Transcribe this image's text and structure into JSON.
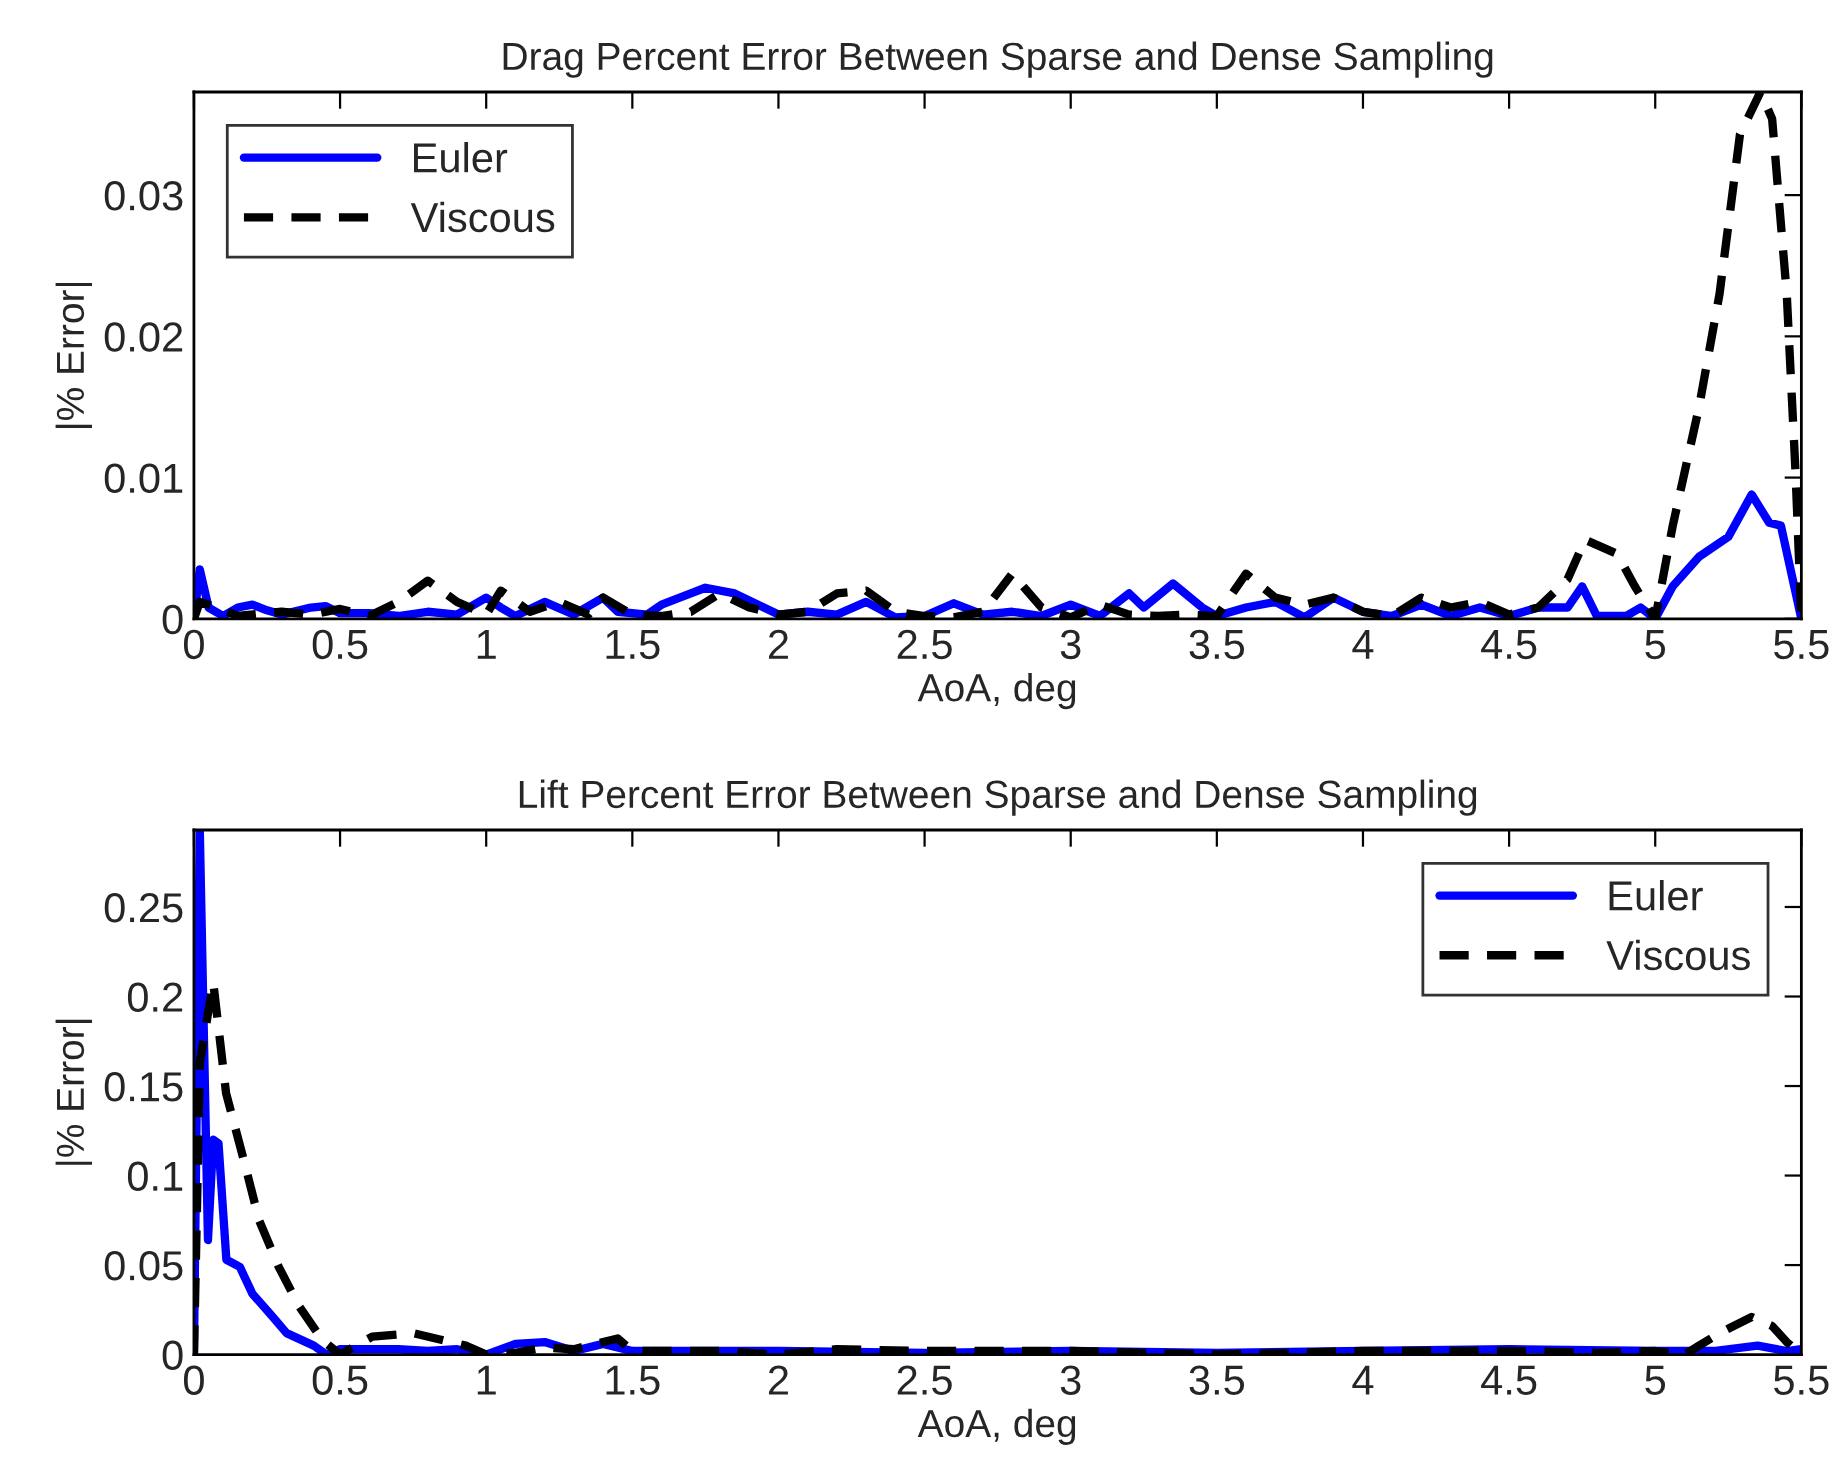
{
  "chart_data": [
    {
      "type": "line",
      "title": "Drag Percent Error Between Sparse and Dense Sampling",
      "xlabel": "AoA, deg",
      "ylabel": "|% Error|",
      "xlim": [
        0,
        5.5
      ],
      "xticks": [
        0,
        0.5,
        1,
        1.5,
        2,
        2.5,
        3,
        3.5,
        4,
        4.5,
        5,
        5.5
      ],
      "ylim": [
        0,
        0.0373
      ],
      "yticks": [
        0,
        0.01,
        0.02,
        0.03
      ],
      "grid": false,
      "legend": "top left",
      "series": [
        {
          "name": "Euler",
          "color": "#0000ff",
          "line_style": "solid",
          "x": [
            0,
            0.02,
            0.05,
            0.1,
            0.15,
            0.2,
            0.25,
            0.3,
            0.4,
            0.45,
            0.5,
            0.6,
            0.7,
            0.8,
            0.9,
            1.0,
            1.05,
            1.1,
            1.2,
            1.3,
            1.4,
            1.45,
            1.55,
            1.6,
            1.7,
            1.75,
            1.85,
            1.95,
            2.0,
            2.1,
            2.2,
            2.3,
            2.4,
            2.5,
            2.6,
            2.7,
            2.8,
            2.9,
            3.0,
            3.1,
            3.2,
            3.25,
            3.35,
            3.45,
            3.5,
            3.6,
            3.7,
            3.8,
            3.9,
            4.0,
            4.1,
            4.2,
            4.3,
            4.4,
            4.5,
            4.6,
            4.7,
            4.75,
            4.8,
            4.9,
            4.95,
            5.0,
            5.06,
            5.15,
            5.25,
            5.33,
            5.39,
            5.43,
            5.5
          ],
          "values": [
            0,
            0.0035,
            0.0008,
            0.0002,
            0.0008,
            0.001,
            0.0006,
            0.0003,
            0.0008,
            0.0009,
            0.0004,
            0.0004,
            0.0002,
            0.0005,
            0.0003,
            0.0015,
            0.0008,
            0.0002,
            0.0012,
            0.0003,
            0.0015,
            0.0005,
            0.0003,
            0.001,
            0.0018,
            0.0022,
            0.0018,
            0.0008,
            0.0003,
            0.0005,
            0.0003,
            0.0012,
            0.0001,
            0.0002,
            0.0011,
            0.0003,
            0.0005,
            0.0002,
            0.001,
            0.0002,
            0.0018,
            0.0008,
            0.0025,
            0.0008,
            0.0002,
            0.0008,
            0.0012,
            0.0001,
            0.0015,
            0.0005,
            0.0002,
            0.001,
            0.0002,
            0.0008,
            0.0002,
            0.0008,
            0.0008,
            0.0023,
            0.0002,
            0.0002,
            0.0008,
            0,
            0.0023,
            0.0044,
            0.0058,
            0.0088,
            0.0068,
            0.0066,
            0
          ]
        },
        {
          "name": "Viscous",
          "color": "#000000",
          "line_style": "dashed",
          "x": [
            0,
            0.02,
            0.08,
            0.15,
            0.3,
            0.4,
            0.5,
            0.6,
            0.7,
            0.8,
            0.9,
            1.0,
            1.05,
            1.15,
            1.25,
            1.35,
            1.4,
            1.5,
            1.6,
            1.7,
            1.8,
            1.9,
            2.0,
            2.1,
            2.2,
            2.3,
            2.4,
            2.5,
            2.6,
            2.7,
            2.8,
            2.9,
            3.0,
            3.1,
            3.2,
            3.3,
            3.4,
            3.5,
            3.6,
            3.7,
            3.8,
            3.9,
            4.0,
            4.1,
            4.2,
            4.3,
            4.4,
            4.5,
            4.6,
            4.7,
            4.76,
            4.87,
            4.93,
            5.0,
            5.06,
            5.15,
            5.22,
            5.29,
            5.36,
            5.4,
            5.45,
            5.48,
            5.5
          ],
          "values": [
            0,
            0.0012,
            0.0008,
            0.0002,
            0.0005,
            0.0003,
            0.0007,
            0.0002,
            0.0012,
            0.0027,
            0.0012,
            0.0003,
            0.002,
            0.0005,
            0.0012,
            0.0003,
            0.0015,
            0.0003,
            0.0002,
            0.0005,
            0.0018,
            0.0008,
            0.0003,
            0.0005,
            0.0018,
            0.002,
            0.0005,
            0.0002,
            0.0001,
            0.0005,
            0.0032,
            0.0008,
            0.0001,
            0.001,
            0.0003,
            0.0002,
            0.0003,
            0.0002,
            0.0032,
            0.0015,
            0.001,
            0.0015,
            0.0005,
            0.0002,
            0.0015,
            0.0008,
            0.0012,
            0.0003,
            0.0008,
            0.0028,
            0.0056,
            0.0046,
            0.0023,
            0,
            0.0066,
            0.015,
            0.023,
            0.0343,
            0.0373,
            0.0354,
            0.023,
            0.0104,
            0
          ]
        }
      ]
    },
    {
      "type": "line",
      "title": "Lift Percent Error Between Sparse and Dense Sampling",
      "xlabel": "AoA, deg",
      "ylabel": "|% Error|",
      "xlim": [
        0,
        5.5
      ],
      "xticks": [
        0,
        0.5,
        1,
        1.5,
        2,
        2.5,
        3,
        3.5,
        4,
        4.5,
        5,
        5.5
      ],
      "ylim": [
        0,
        0.293
      ],
      "yticks": [
        0,
        0.05,
        0.1,
        0.15,
        0.2,
        0.25
      ],
      "grid": false,
      "legend": "top right",
      "series": [
        {
          "name": "Euler",
          "color": "#0000ff",
          "line_style": "solid",
          "x": [
            0,
            0.02,
            0.048,
            0.066,
            0.084,
            0.111,
            0.157,
            0.2,
            0.27,
            0.317,
            0.41,
            0.454,
            0.5,
            0.7,
            0.8,
            0.9,
            1.0,
            1.1,
            1.2,
            1.3,
            1.4,
            1.5,
            2.0,
            2.5,
            3.0,
            3.5,
            4.0,
            4.5,
            5.0,
            5.2,
            5.35,
            5.45,
            5.5
          ],
          "values": [
            0,
            0.293,
            0.064,
            0.12,
            0.118,
            0.053,
            0.049,
            0.034,
            0.021,
            0.012,
            0.005,
            0,
            0.003,
            0.003,
            0.002,
            0.003,
            0,
            0.006,
            0.007,
            0.002,
            0.006,
            0.002,
            0.002,
            0.001,
            0.002,
            0.001,
            0.002,
            0.003,
            0.002,
            0.002,
            0.005,
            0.002,
            0.003
          ]
        },
        {
          "name": "Viscous",
          "color": "#000000",
          "line_style": "dashed",
          "x": [
            0,
            0.011,
            0.02,
            0.066,
            0.11,
            0.17,
            0.223,
            0.29,
            0.36,
            0.44,
            0.5,
            0.61,
            0.75,
            0.93,
            1.0,
            1.1,
            1.2,
            1.3,
            1.45,
            1.5,
            1.8,
            2.0,
            2.2,
            2.5,
            3.0,
            3.5,
            4.0,
            4.5,
            4.8,
            5.0,
            5.1,
            5.15,
            5.22,
            5.33,
            5.4,
            5.45,
            5.5
          ],
          "values": [
            0,
            0.086,
            0.163,
            0.208,
            0.146,
            0.109,
            0.075,
            0.049,
            0.027,
            0.008,
            0,
            0.01,
            0.012,
            0.005,
            0,
            0.001,
            0.004,
            0.003,
            0.009,
            0.002,
            0.002,
            0,
            0.003,
            0.002,
            0.002,
            0,
            0.002,
            0.002,
            0.001,
            0.002,
            0,
            0.005,
            0.012,
            0.021,
            0.016,
            0.007,
            0
          ]
        }
      ]
    }
  ]
}
